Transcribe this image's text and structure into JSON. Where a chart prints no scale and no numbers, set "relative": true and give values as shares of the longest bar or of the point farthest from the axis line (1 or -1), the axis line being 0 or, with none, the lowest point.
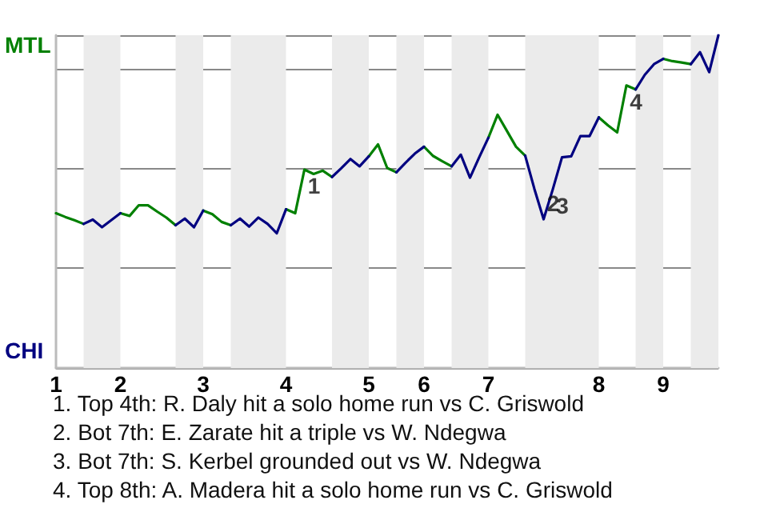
{
  "chart_data": {
    "type": "line",
    "relative": true,
    "categories": [
      "1",
      null,
      null,
      null,
      null,
      null,
      null,
      "2",
      null,
      null,
      null,
      null,
      null,
      null,
      null,
      null,
      "3",
      null,
      null,
      null,
      null,
      null,
      null,
      null,
      null,
      "4",
      null,
      null,
      null,
      null,
      null,
      null,
      null,
      null,
      "5",
      null,
      null,
      null,
      null,
      null,
      "6",
      null,
      null,
      null,
      null,
      null,
      null,
      "7",
      null,
      null,
      null,
      null,
      null,
      null,
      null,
      null,
      null,
      null,
      null,
      "8",
      null,
      null,
      null,
      null,
      null,
      null,
      "9",
      null,
      null,
      null,
      null,
      null,
      null
    ],
    "grid": "y",
    "legend": false,
    "marker": "none",
    "line_style": "solid",
    "series": [
      {
        "name": "MTL",
        "color": "#008000",
        "values": [
          0.465,
          0.454,
          0.444,
          0.433,
          null,
          null,
          null,
          0.465,
          0.457,
          0.489,
          0.489,
          0.47,
          0.452,
          0.429,
          null,
          null,
          0.473,
          0.462,
          0.439,
          0.429,
          null,
          null,
          null,
          null,
          null,
          0.477,
          0.465,
          0.596,
          0.583,
          0.593,
          0.574,
          null,
          null,
          null,
          0.636,
          0.672,
          0.601,
          0.588,
          null,
          null,
          0.665,
          0.637,
          0.621,
          0.606,
          null,
          null,
          null,
          0.692,
          0.761,
          0.713,
          0.665,
          0.638,
          null,
          null,
          null,
          null,
          null,
          null,
          null,
          0.753,
          0.729,
          0.708,
          0.849,
          0.837,
          null,
          null,
          0.929,
          0.922,
          0.918,
          0.913,
          null,
          null,
          null
        ]
      },
      {
        "name": "CHI",
        "color": "#000080",
        "values": [
          null,
          null,
          null,
          0.433,
          0.446,
          0.423,
          0.444,
          0.465,
          null,
          null,
          null,
          null,
          null,
          0.429,
          0.449,
          0.423,
          0.473,
          null,
          null,
          0.429,
          0.449,
          0.425,
          0.452,
          0.433,
          0.405,
          0.477,
          null,
          null,
          null,
          null,
          0.574,
          0.6,
          0.628,
          0.606,
          0.636,
          null,
          null,
          0.588,
          0.617,
          0.644,
          0.665,
          null,
          null,
          0.606,
          0.641,
          0.572,
          0.633,
          0.692,
          null,
          null,
          null,
          0.638,
          0.538,
          0.447,
          0.537,
          0.633,
          0.636,
          0.697,
          0.697,
          0.753,
          null,
          null,
          null,
          0.837,
          0.881,
          0.913,
          0.929,
          null,
          null,
          0.913,
          0.949,
          0.889,
          1
        ]
      }
    ],
    "annotations": [
      {
        "text": "1",
        "y": 0.596
      },
      {
        "text": "2",
        "y": 0.447
      },
      {
        "text": "3",
        "y": 0.537
      },
      {
        "text": "4",
        "y": 0.849
      },
      "1. Top 4th: R. Daly hit a solo home run vs C. Griswold",
      "2. Bot 7th: E. Zarate hit a triple vs W. Ndegwa",
      "3. Bot 7th: S. Kerbel grounded out vs W. Ndegwa",
      "4. Top 8th: A. Madera hit a solo home run vs C. Griswold"
    ]
  }
}
